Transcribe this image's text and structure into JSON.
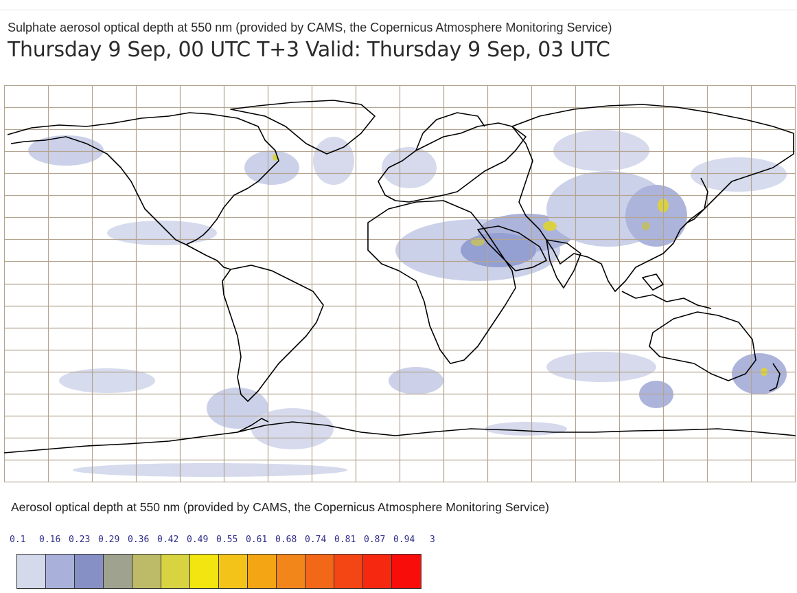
{
  "header": {
    "subtitle": "Sulphate aerosol optical depth at 550 nm (provided by CAMS, the Copernicus Atmosphere Monitoring Service)",
    "title": "Thursday 9 Sep, 00 UTC T+3 Valid: Thursday 9 Sep, 03 UTC"
  },
  "legend": {
    "title": "Aerosol optical depth at 550 nm (provided by CAMS, the Copernicus Atmosphere Monitoring Service)",
    "ticks": [
      "0.1",
      "0.16",
      "0.23",
      "0.29",
      "0.36",
      "0.42",
      "0.49",
      "0.55",
      "0.61",
      "0.68",
      "0.74",
      "0.81",
      "0.87",
      "0.94",
      "3"
    ],
    "colors": [
      "#d4d9ec",
      "#a9b0da",
      "#8690c4",
      "#9ea28f",
      "#bdbb67",
      "#d7d341",
      "#f2e510",
      "#f4c31a",
      "#f3a514",
      "#f3861a",
      "#f36718",
      "#f44514",
      "#f62910",
      "#f80d0a"
    ]
  },
  "map": {
    "colors": {
      "land_outline": "#000000",
      "grid": "#b3a591",
      "haze_low": "#c9cfe8",
      "haze_mid": "#8f9ad0",
      "haze_high": "#d8cf3a"
    }
  }
}
